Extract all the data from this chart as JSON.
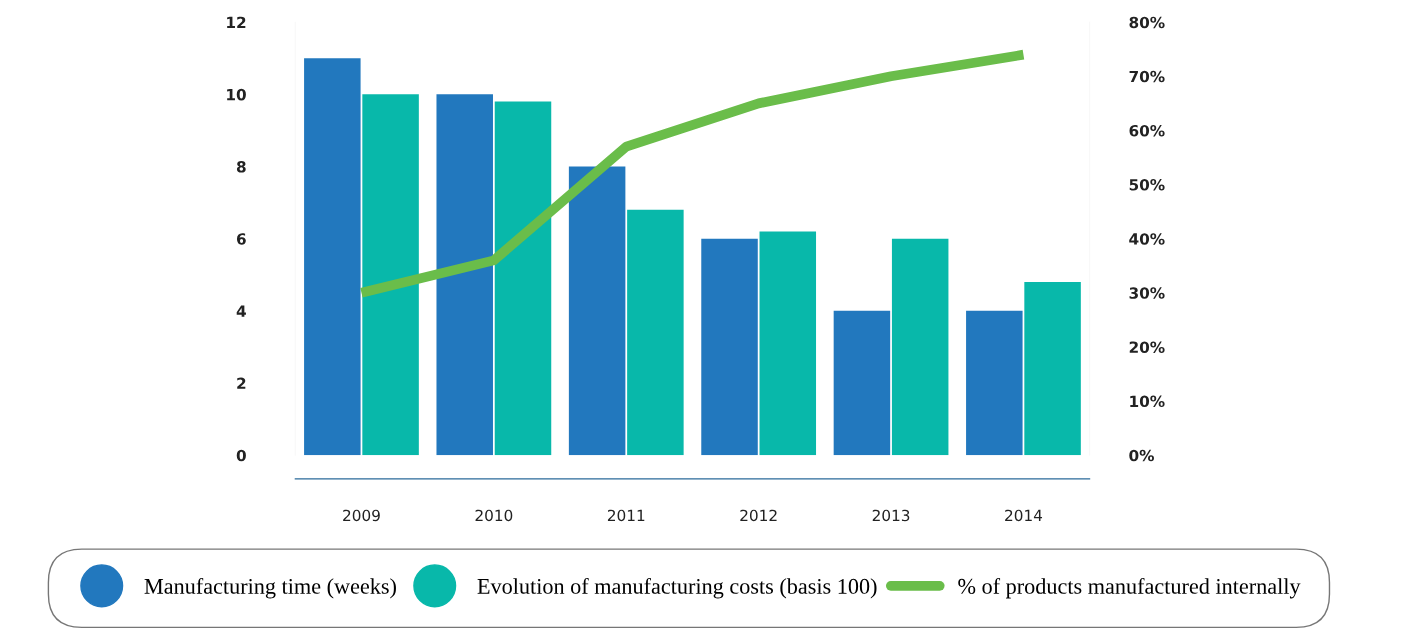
{
  "chart_data": {
    "type": "bar",
    "categories": [
      "2009",
      "2010",
      "2011",
      "2012",
      "2013",
      "2014"
    ],
    "series": [
      {
        "name": "Manufacturing time (weeks)",
        "color": "#2278be",
        "values": [
          11,
          10,
          8,
          6,
          4,
          4
        ]
      },
      {
        "name": "Evolution of manufacturing costs (basis 100)",
        "color": "#08b8aa",
        "values": [
          10,
          9.8,
          6.8,
          6.2,
          6,
          4.8
        ]
      },
      {
        "name": "% of products manufactured internally",
        "color": "#6abd4a",
        "type": "line",
        "axis": "y2",
        "values": [
          30,
          36,
          57,
          65,
          70,
          74
        ]
      }
    ],
    "ylim": [
      0,
      12
    ],
    "yticks": [
      0,
      2,
      4,
      6,
      8,
      10,
      12
    ],
    "y2lim": [
      0,
      80
    ],
    "y2ticks": [
      {
        "value": 0,
        "label": "0%"
      },
      {
        "value": 10,
        "label": "10%"
      },
      {
        "value": 20,
        "label": "20%"
      },
      {
        "value": 30,
        "label": "30%"
      },
      {
        "value": 40,
        "label": "40%"
      },
      {
        "value": 50,
        "label": "50%"
      },
      {
        "value": 60,
        "label": "60%"
      },
      {
        "value": 70,
        "label": "70%"
      },
      {
        "value": 80,
        "label": "80%"
      }
    ],
    "grid": false,
    "legend": "bottom",
    "marker": "none",
    "line_style": "solid"
  }
}
